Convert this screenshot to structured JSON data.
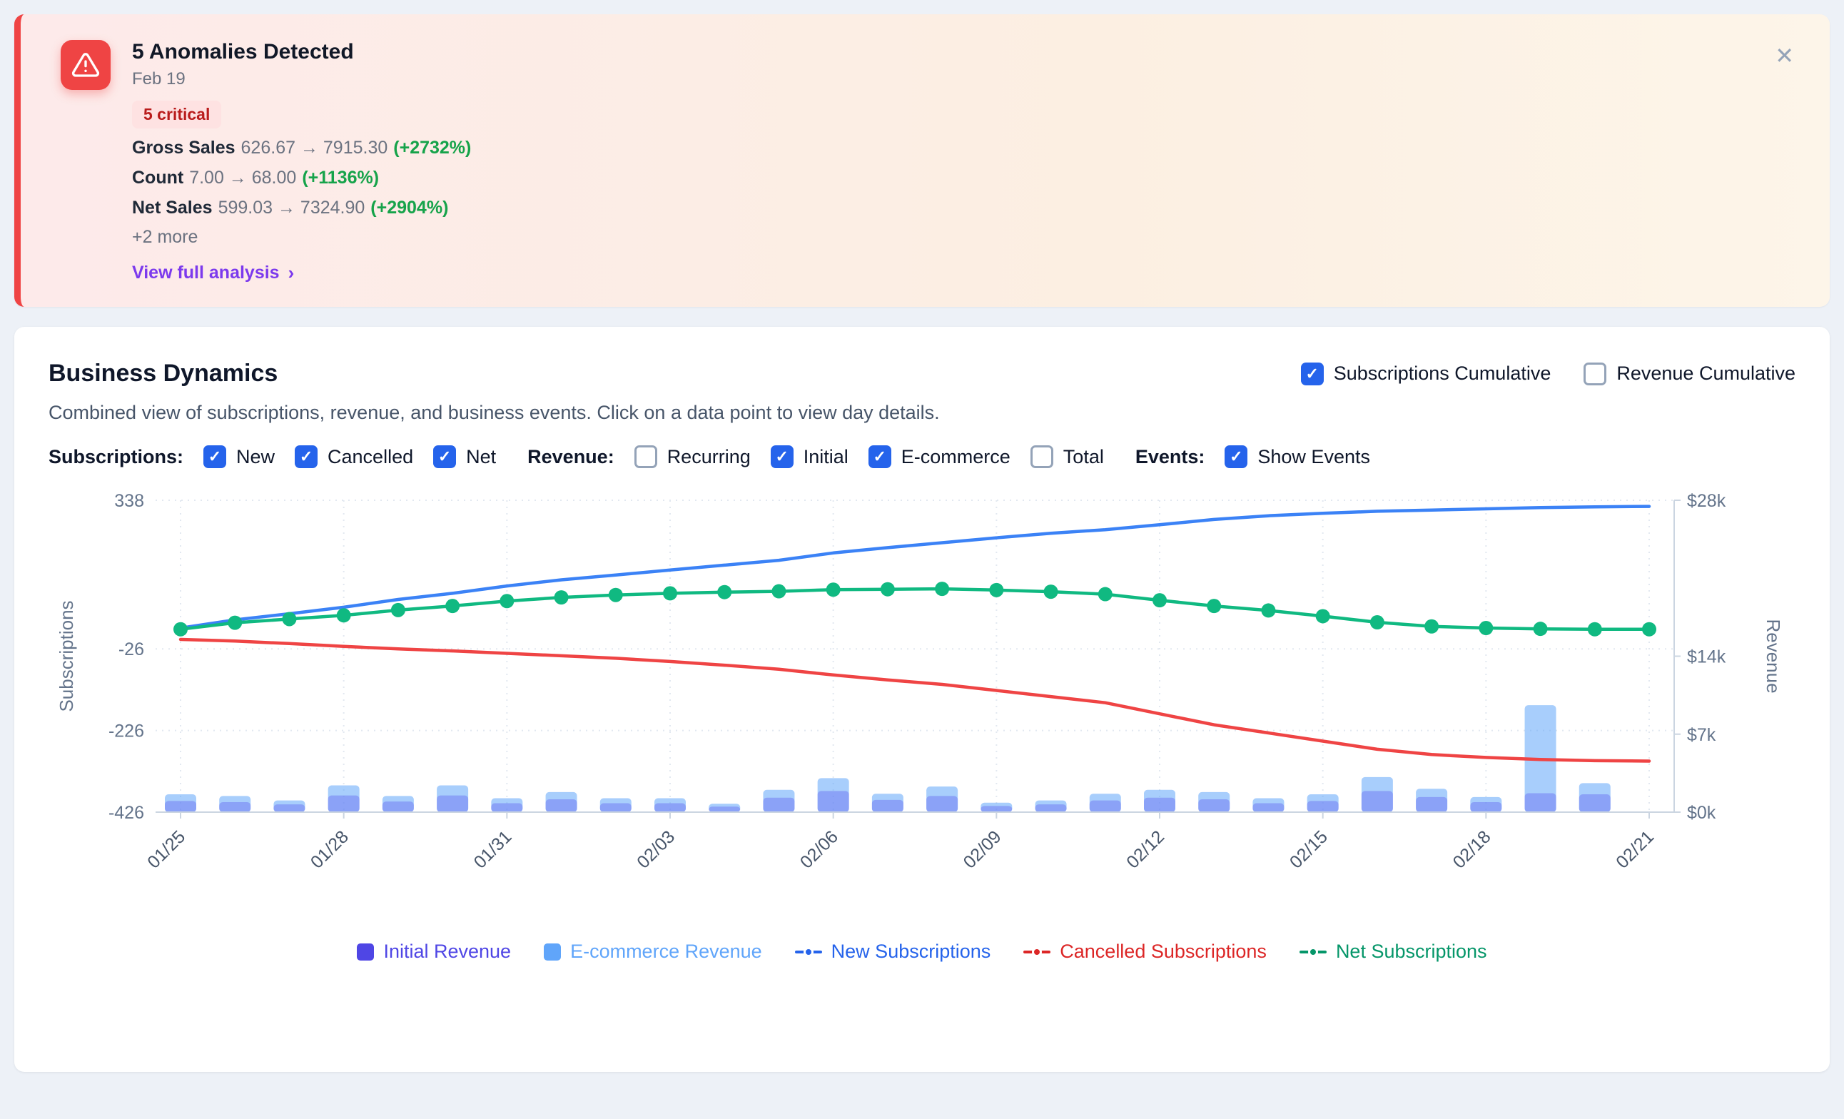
{
  "icons": {
    "close": "✕",
    "chevron": "›",
    "check": "✓",
    "warning": "alert-triangle"
  },
  "alert": {
    "title": "5 Anomalies Detected",
    "date": "Feb 19",
    "badge": "5 critical",
    "metrics": [
      {
        "label": "Gross Sales",
        "values": "626.67 → 7915.30",
        "change": "(+2732%)"
      },
      {
        "label": "Count",
        "values": "7.00 → 68.00",
        "change": "(+1136%)"
      },
      {
        "label": "Net Sales",
        "values": "599.03 → 7324.90",
        "change": "(+2904%)"
      }
    ],
    "more": "+2 more",
    "link": "View full analysis"
  },
  "panel": {
    "title": "Business Dynamics",
    "subtitle": "Combined view of subscriptions, revenue, and business events. Click on a data point to view day details.",
    "cumulative_toggles": [
      {
        "label": "Subscriptions Cumulative",
        "checked": true
      },
      {
        "label": "Revenue Cumulative",
        "checked": false
      }
    ],
    "filters": [
      {
        "group": "Subscriptions:",
        "options": [
          {
            "label": "New",
            "checked": true
          },
          {
            "label": "Cancelled",
            "checked": true
          },
          {
            "label": "Net",
            "checked": true
          }
        ]
      },
      {
        "group": "Revenue:",
        "options": [
          {
            "label": "Recurring",
            "checked": false
          },
          {
            "label": "Initial",
            "checked": true
          },
          {
            "label": "E-commerce",
            "checked": true
          },
          {
            "label": "Total",
            "checked": false
          }
        ]
      },
      {
        "group": "Events:",
        "options": [
          {
            "label": "Show Events",
            "checked": true
          }
        ]
      }
    ]
  },
  "chart_data": {
    "type": "combo",
    "x": [
      "01/25",
      "01/26",
      "01/27",
      "01/28",
      "01/29",
      "01/30",
      "01/31",
      "02/01",
      "02/02",
      "02/03",
      "02/04",
      "02/05",
      "02/06",
      "02/07",
      "02/08",
      "02/09",
      "02/10",
      "02/11",
      "02/12",
      "02/13",
      "02/14",
      "02/15",
      "02/16",
      "02/17",
      "02/18",
      "02/19",
      "02/20",
      "02/21"
    ],
    "x_tick_every": 3,
    "left_axis": {
      "label": "Subscriptions",
      "range": [
        -426,
        338
      ],
      "ticks": [
        338,
        -26,
        -226,
        -426
      ]
    },
    "right_axis": {
      "label": "Revenue",
      "range": [
        0,
        28000
      ],
      "ticks": [
        {
          "label": "$28k",
          "value": 28000
        },
        {
          "label": "$14k",
          "value": 14000
        },
        {
          "label": "$7k",
          "value": 7000
        },
        {
          "label": "$0k",
          "value": 0
        }
      ]
    },
    "series": [
      {
        "name": "E-commerce Revenue",
        "kind": "bar",
        "axis": "right",
        "color": "#60a5fa",
        "opacity": 0.55,
        "values": [
          1600,
          1450,
          1050,
          2400,
          1450,
          2400,
          1250,
          1800,
          1250,
          1250,
          750,
          2000,
          3050,
          1650,
          2300,
          850,
          1050,
          1650,
          2000,
          1800,
          1250,
          1600,
          3150,
          2100,
          1350,
          9600,
          2600,
          0
        ]
      },
      {
        "name": "Initial Revenue",
        "kind": "bar",
        "axis": "right",
        "color": "#6366f1",
        "opacity": 0.42,
        "values": [
          1000,
          900,
          700,
          1500,
          950,
          1500,
          800,
          1150,
          800,
          800,
          500,
          1300,
          1900,
          1100,
          1450,
          550,
          700,
          1050,
          1300,
          1150,
          800,
          1000,
          1900,
          1350,
          900,
          1700,
          1600,
          0
        ]
      },
      {
        "name": "New Subscriptions",
        "kind": "line",
        "axis": "left",
        "color": "#3b82f6",
        "markers": false,
        "values": [
          25,
          45,
          60,
          76,
          95,
          110,
          128,
          143,
          155,
          167,
          179,
          191,
          209,
          222,
          234,
          246,
          257,
          266,
          278,
          291,
          300,
          306,
          311,
          314,
          317,
          320,
          322,
          323
        ]
      },
      {
        "name": "Cancelled Subscriptions",
        "kind": "line",
        "axis": "left",
        "color": "#ef4444",
        "markers": false,
        "values": [
          -3,
          -7,
          -13,
          -20,
          -26,
          -31,
          -37,
          -43,
          -49,
          -57,
          -66,
          -76,
          -90,
          -102,
          -113,
          -128,
          -143,
          -158,
          -185,
          -212,
          -232,
          -252,
          -272,
          -285,
          -292,
          -297,
          -300,
          -301
        ]
      },
      {
        "name": "Net Subscriptions",
        "kind": "line",
        "axis": "left",
        "color": "#10b981",
        "markers": true,
        "values": [
          22,
          38,
          47,
          56,
          69,
          79,
          91,
          100,
          106,
          110,
          113,
          115,
          119,
          120,
          121,
          118,
          114,
          108,
          93,
          79,
          68,
          54,
          39,
          29,
          25,
          23,
          22,
          22
        ]
      }
    ],
    "legend": [
      {
        "label": "Initial Revenue",
        "icon": "square",
        "color": "#4f46e5"
      },
      {
        "label": "E-commerce Revenue",
        "icon": "square",
        "color": "#60a5fa"
      },
      {
        "label": "New Subscriptions",
        "icon": "line",
        "color": "#2563eb"
      },
      {
        "label": "Cancelled Subscriptions",
        "icon": "line",
        "color": "#dc2626"
      },
      {
        "label": "Net Subscriptions",
        "icon": "line",
        "color": "#059669"
      }
    ]
  }
}
